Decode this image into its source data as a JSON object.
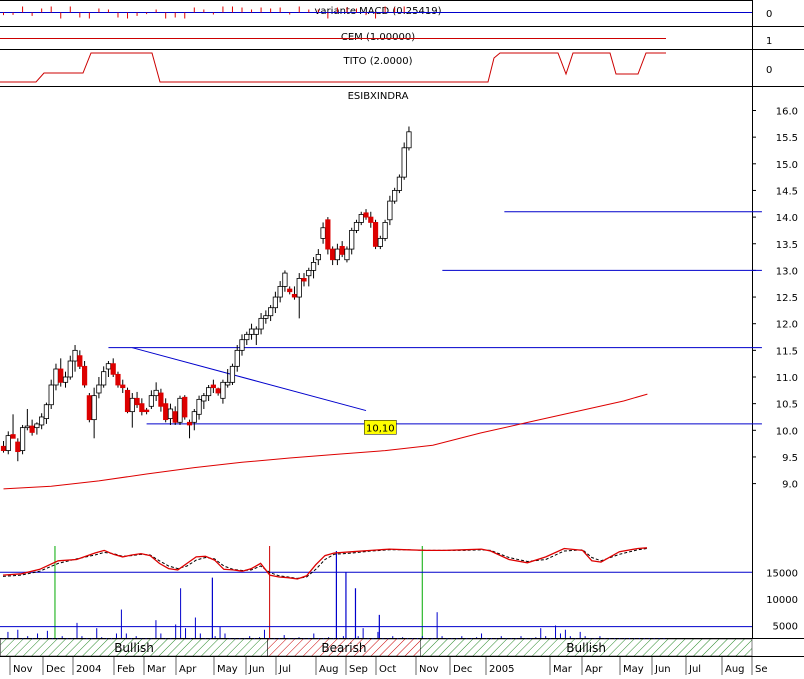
{
  "colors": {
    "frame": "#000000",
    "up_candle": "#ffffff",
    "down_candle": "#dd0000",
    "trendline": "#0000cc",
    "moving_average": "#dd0000",
    "volume": "#0000cc",
    "volume_level_line": "#0000cc",
    "stochastic_main": "#dd0000",
    "stochastic_signal": "#000000",
    "macd_histogram": "#dd0000",
    "signal_divider": "#00aa00",
    "annotation_bg": "#ffff00",
    "bullish_hatch": "#2a8a2a",
    "bearish_hatch": "#cc0000"
  },
  "chart_data": {
    "type": "candlestick",
    "title": "ESIBXINDRA",
    "price_axis": {
      "range": [
        8.5,
        16.3
      ],
      "ticks": [
        "9.0",
        "9.5",
        "10.0",
        "10.5",
        "11.0",
        "11.5",
        "12.0",
        "12.5",
        "13.0",
        "13.5",
        "14.0",
        "14.5",
        "15.0",
        "15.5",
        "16.0"
      ]
    },
    "time_axis": {
      "labels": [
        "Nov",
        "Dec",
        "2004",
        "Feb",
        "Mar",
        "Apr",
        "May",
        "Jun",
        "Jul",
        "Aug",
        "Sep",
        "Oct",
        "Nov",
        "Dec",
        "2005",
        "Mar",
        "Apr",
        "May",
        "Jun",
        "Jul",
        "Aug",
        "Se"
      ]
    },
    "candles": [
      [
        9.7,
        9.8,
        9.58,
        9.62
      ],
      [
        9.62,
        9.98,
        9.55,
        9.9
      ],
      [
        9.92,
        10.3,
        9.85,
        9.85
      ],
      [
        9.78,
        9.85,
        9.42,
        9.6
      ],
      [
        9.62,
        10.1,
        9.55,
        10.05
      ],
      [
        10.05,
        10.4,
        10.0,
        10.08
      ],
      [
        10.08,
        10.2,
        9.9,
        9.96
      ],
      [
        10.05,
        10.15,
        9.92,
        10.12
      ],
      [
        10.1,
        10.32,
        10.02,
        10.25
      ],
      [
        10.22,
        10.52,
        10.12,
        10.48
      ],
      [
        10.48,
        10.95,
        10.4,
        10.85
      ],
      [
        10.85,
        11.25,
        10.75,
        11.15
      ],
      [
        11.15,
        11.35,
        10.82,
        10.9
      ],
      [
        10.9,
        11.1,
        10.8,
        11.0
      ],
      [
        11.0,
        11.4,
        10.95,
        11.3
      ],
      [
        11.3,
        11.6,
        11.1,
        11.5
      ],
      [
        11.4,
        11.5,
        11.15,
        11.2
      ],
      [
        11.2,
        11.3,
        10.8,
        10.85
      ],
      [
        10.65,
        10.7,
        10.15,
        10.2
      ],
      [
        10.2,
        10.8,
        9.85,
        10.65
      ],
      [
        10.7,
        11.0,
        10.6,
        10.85
      ],
      [
        10.85,
        11.2,
        10.8,
        11.1
      ],
      [
        11.15,
        11.3,
        11.0,
        11.25
      ],
      [
        11.25,
        11.35,
        11.0,
        11.05
      ],
      [
        11.05,
        11.1,
        10.8,
        10.85
      ],
      [
        10.85,
        10.95,
        10.7,
        10.8
      ],
      [
        10.75,
        10.8,
        10.32,
        10.35
      ],
      [
        10.35,
        10.7,
        10.05,
        10.6
      ],
      [
        10.6,
        10.72,
        10.42,
        10.48
      ],
      [
        10.5,
        10.6,
        10.28,
        10.35
      ],
      [
        10.38,
        10.42,
        10.3,
        10.35
      ],
      [
        10.45,
        10.75,
        10.4,
        10.65
      ],
      [
        10.65,
        10.9,
        10.55,
        10.75
      ],
      [
        10.7,
        10.78,
        10.35,
        10.45
      ],
      [
        10.5,
        10.6,
        10.15,
        10.2
      ],
      [
        10.22,
        10.5,
        10.1,
        10.4
      ],
      [
        10.35,
        10.45,
        10.1,
        10.15
      ],
      [
        10.15,
        10.65,
        10.1,
        10.6
      ],
      [
        10.62,
        10.66,
        10.2,
        10.25
      ],
      [
        10.15,
        10.2,
        9.85,
        10.1
      ],
      [
        10.15,
        10.4,
        10.0,
        10.35
      ],
      [
        10.3,
        10.65,
        10.2,
        10.58
      ],
      [
        10.55,
        10.7,
        10.4,
        10.65
      ],
      [
        10.65,
        10.85,
        10.55,
        10.8
      ],
      [
        10.85,
        10.95,
        10.7,
        10.8
      ],
      [
        10.78,
        10.8,
        10.65,
        10.7
      ],
      [
        10.6,
        10.95,
        10.5,
        10.9
      ],
      [
        10.85,
        11.15,
        10.8,
        10.9
      ],
      [
        10.9,
        11.25,
        10.85,
        11.2
      ],
      [
        11.2,
        11.6,
        11.1,
        11.5
      ],
      [
        11.5,
        11.8,
        11.4,
        11.7
      ],
      [
        11.7,
        11.85,
        11.6,
        11.8
      ],
      [
        11.8,
        12.0,
        11.7,
        11.9
      ],
      [
        11.8,
        11.95,
        11.6,
        11.9
      ],
      [
        11.9,
        12.2,
        11.8,
        12.1
      ],
      [
        12.1,
        12.25,
        12.0,
        12.15
      ],
      [
        12.15,
        12.35,
        12.05,
        12.3
      ],
      [
        12.3,
        12.6,
        12.2,
        12.5
      ],
      [
        12.5,
        12.8,
        12.4,
        12.7
      ],
      [
        12.7,
        13.0,
        12.6,
        12.95
      ],
      [
        12.65,
        12.7,
        12.55,
        12.6
      ],
      [
        12.55,
        12.7,
        12.45,
        12.5
      ],
      [
        12.5,
        12.95,
        12.1,
        12.85
      ],
      [
        12.85,
        12.95,
        12.7,
        12.8
      ],
      [
        12.9,
        13.05,
        12.7,
        13.0
      ],
      [
        13.0,
        13.25,
        12.85,
        13.15
      ],
      [
        13.2,
        13.4,
        13.1,
        13.3
      ],
      [
        13.6,
        13.9,
        13.5,
        13.8
      ],
      [
        13.95,
        14.0,
        13.3,
        13.4
      ],
      [
        13.4,
        13.45,
        13.1,
        13.2
      ],
      [
        13.2,
        13.5,
        13.1,
        13.4
      ],
      [
        13.45,
        13.55,
        13.25,
        13.3
      ],
      [
        13.2,
        13.45,
        13.15,
        13.4
      ],
      [
        13.4,
        13.8,
        13.3,
        13.75
      ],
      [
        13.75,
        13.95,
        13.7,
        13.9
      ],
      [
        13.9,
        14.1,
        13.85,
        14.05
      ],
      [
        14.08,
        14.15,
        13.95,
        14.0
      ],
      [
        14.0,
        14.1,
        13.8,
        13.9
      ],
      [
        13.9,
        13.95,
        13.4,
        13.45
      ],
      [
        13.45,
        13.65,
        13.4,
        13.6
      ],
      [
        13.6,
        13.95,
        13.55,
        13.9
      ],
      [
        13.95,
        14.4,
        13.85,
        14.3
      ],
      [
        14.3,
        14.55,
        14.25,
        14.5
      ],
      [
        14.5,
        14.8,
        14.45,
        14.75
      ],
      [
        14.75,
        15.4,
        14.7,
        15.3
      ],
      [
        15.3,
        15.7,
        15.25,
        15.6
      ]
    ],
    "moving_average": [
      [
        0,
        8.9
      ],
      [
        10,
        8.95
      ],
      [
        20,
        9.05
      ],
      [
        30,
        9.18
      ],
      [
        40,
        9.3
      ],
      [
        50,
        9.4
      ],
      [
        60,
        9.48
      ],
      [
        70,
        9.55
      ],
      [
        80,
        9.62
      ],
      [
        90,
        9.72
      ],
      [
        100,
        9.95
      ],
      [
        110,
        10.15
      ],
      [
        120,
        10.35
      ],
      [
        130,
        10.55
      ],
      [
        135,
        10.68
      ]
    ],
    "horizontal_lines": [
      {
        "from": 105,
        "to": 159,
        "y": 14.1
      },
      {
        "from": 92,
        "to": 159,
        "y": 13.0
      },
      {
        "from": 22,
        "to": 159,
        "y": 11.55
      },
      {
        "from": 30,
        "to": 159,
        "y": 10.12
      }
    ],
    "trendlines": [
      {
        "x1": 27,
        "y1": 11.55,
        "x2": 76,
        "y2": 10.37
      }
    ],
    "annotation": {
      "text": "10,10",
      "bar": 79,
      "y": 10.0
    },
    "stochastic": {
      "k": [
        [
          0,
          66
        ],
        [
          4,
          68
        ],
        [
          8,
          75
        ],
        [
          12,
          88
        ],
        [
          16,
          90
        ],
        [
          20,
          100
        ],
        [
          22,
          104
        ],
        [
          24,
          98
        ],
        [
          26,
          94
        ],
        [
          28,
          97
        ],
        [
          30,
          99
        ],
        [
          32,
          96
        ],
        [
          34,
          84
        ],
        [
          36,
          76
        ],
        [
          38,
          74
        ],
        [
          40,
          84
        ],
        [
          42,
          94
        ],
        [
          44,
          95
        ],
        [
          46,
          89
        ],
        [
          48,
          75
        ],
        [
          50,
          74
        ],
        [
          52,
          72
        ],
        [
          54,
          76
        ],
        [
          56,
          84
        ],
        [
          58,
          66
        ],
        [
          60,
          63
        ],
        [
          62,
          62
        ],
        [
          64,
          60
        ],
        [
          66,
          65
        ],
        [
          68,
          82
        ],
        [
          70,
          96
        ],
        [
          72,
          100
        ],
        [
          76,
          102
        ],
        [
          80,
          104
        ],
        [
          84,
          106
        ],
        [
          88,
          105
        ],
        [
          92,
          104
        ],
        [
          96,
          104
        ],
        [
          100,
          105
        ],
        [
          104,
          106
        ],
        [
          106,
          103
        ],
        [
          110,
          90
        ],
        [
          114,
          85
        ],
        [
          118,
          94
        ],
        [
          122,
          107
        ],
        [
          126,
          104
        ],
        [
          128,
          88
        ],
        [
          130,
          86
        ],
        [
          134,
          102
        ],
        [
          138,
          107
        ],
        [
          140,
          108
        ]
      ],
      "d": [
        [
          0,
          64
        ],
        [
          4,
          66
        ],
        [
          8,
          72
        ],
        [
          12,
          84
        ],
        [
          16,
          91
        ],
        [
          20,
          97
        ],
        [
          22,
          101
        ],
        [
          24,
          99
        ],
        [
          26,
          95
        ],
        [
          28,
          96
        ],
        [
          30,
          98
        ],
        [
          32,
          97
        ],
        [
          34,
          88
        ],
        [
          36,
          80
        ],
        [
          38,
          76
        ],
        [
          40,
          80
        ],
        [
          42,
          89
        ],
        [
          44,
          93
        ],
        [
          46,
          91
        ],
        [
          48,
          80
        ],
        [
          50,
          75
        ],
        [
          52,
          73
        ],
        [
          54,
          74
        ],
        [
          56,
          80
        ],
        [
          58,
          70
        ],
        [
          60,
          65
        ],
        [
          62,
          63
        ],
        [
          64,
          61
        ],
        [
          66,
          63
        ],
        [
          68,
          75
        ],
        [
          70,
          90
        ],
        [
          72,
          98
        ],
        [
          76,
          100
        ],
        [
          80,
          103
        ],
        [
          84,
          105
        ],
        [
          88,
          105
        ],
        [
          92,
          104
        ],
        [
          96,
          104
        ],
        [
          100,
          104
        ],
        [
          104,
          105
        ],
        [
          106,
          104
        ],
        [
          110,
          93
        ],
        [
          114,
          87
        ],
        [
          118,
          90
        ],
        [
          122,
          103
        ],
        [
          126,
          105
        ],
        [
          128,
          93
        ],
        [
          130,
          88
        ],
        [
          134,
          98
        ],
        [
          138,
          105
        ],
        [
          140,
          107
        ]
      ]
    },
    "volume": {
      "axis_ticks": [
        "5000",
        "10000",
        "15000"
      ],
      "range": [
        0,
        21000
      ],
      "level_lines": [
        15000,
        4800
      ],
      "values": [
        2500,
        3800,
        1500,
        4200,
        2000,
        3000,
        1800,
        3500,
        2500,
        4000,
        2200,
        1800,
        3000,
        1500,
        2500,
        5500,
        3000,
        2000,
        1500,
        4500,
        2800,
        2200,
        2500,
        3500,
        8000,
        3500,
        2200,
        3000,
        2500,
        1800,
        2500,
        6000,
        3500,
        2000,
        2500,
        5200,
        12000,
        4500,
        2000,
        6500,
        3500,
        2500,
        2200,
        3000,
        4800,
        3500,
        2500,
        2000,
        1800,
        2500,
        3000,
        2200,
        2800,
        4200,
        2000,
        2500,
        1800,
        3200,
        2500,
        2000,
        2800,
        2500,
        2200,
        3500,
        2000,
        1800,
        2800,
        2500,
        2000,
        3000,
        2500,
        2200,
        3000,
        4500,
        2500,
        2000,
        3800,
        2500,
        2000,
        3000,
        2200,
        2800,
        2500,
        1800,
        2200,
        3000,
        2500,
        2000,
        7500,
        3000,
        2200,
        2500,
        2000,
        3000,
        2500,
        2200,
        2800,
        3500,
        2500,
        2000,
        2500,
        3000,
        2200,
        2500,
        2000,
        3000,
        2500,
        2200,
        2800,
        4500,
        3000,
        2500,
        5000,
        3500,
        4200,
        3000,
        2500,
        3800,
        3000,
        2500,
        2200,
        3000,
        2500,
        2000,
        1800,
        2500,
        2000,
        2200,
        2500,
        2000,
        1800,
        2500,
        2000,
        1500,
        1800
      ],
      "large_spikes": [
        [
          44,
          14000
        ],
        [
          70,
          19000
        ],
        [
          72,
          15000
        ],
        [
          74,
          12000
        ],
        [
          79,
          7000
        ]
      ]
    },
    "indicators": [
      {
        "label": "variante MACD (0.25419)",
        "axis_value": "0"
      },
      {
        "label": "CEM (1.00000)",
        "axis_value": "1"
      },
      {
        "label": "TITO (2.0000)",
        "axis_value": "0"
      }
    ],
    "signal_bands": [
      {
        "label": "Bullish",
        "from": 0,
        "to": 56
      },
      {
        "label": "Bearish",
        "from": 56,
        "to": 88
      },
      {
        "label": "Bullish",
        "from": 88,
        "to": 174
      }
    ],
    "signal_dividers": [
      11,
      56,
      88
    ]
  }
}
